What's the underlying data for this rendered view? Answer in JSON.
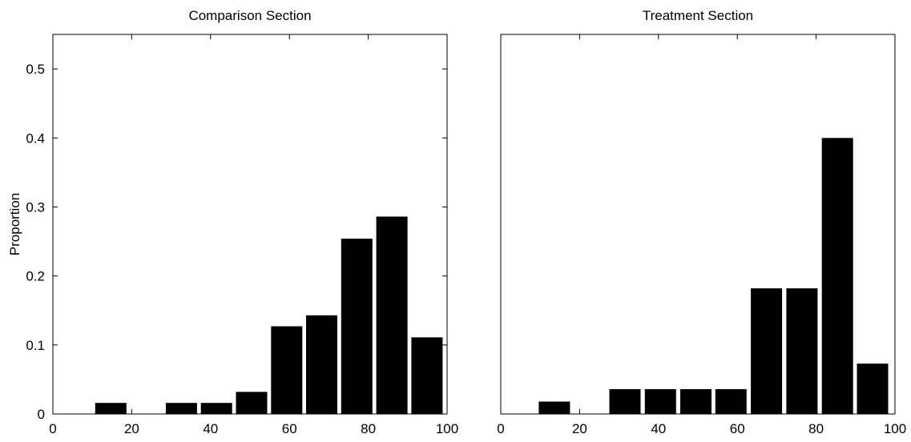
{
  "chart_data": [
    {
      "type": "bar",
      "title": "Comparison Section",
      "xlabel": "",
      "ylabel": "Proportion",
      "xlim": [
        0,
        100
      ],
      "ylim": [
        0,
        0.55
      ],
      "xticks": [
        0,
        20,
        40,
        60,
        80,
        100
      ],
      "yticks": [
        0,
        0.1,
        0.2,
        0.3,
        0.4,
        0.5
      ],
      "ytick_labels": [
        "0",
        "0.1",
        "0.2",
        "0.3",
        "0.4",
        "0.5"
      ],
      "y_axis_side": "left",
      "x": [
        14.7,
        23.7,
        32.6,
        41.5,
        50.4,
        59.3,
        68.2,
        77.1,
        86.0,
        94.9
      ],
      "values": [
        0.016,
        0.0,
        0.016,
        0.016,
        0.032,
        0.127,
        0.143,
        0.254,
        0.286,
        0.111
      ],
      "color": "#000000",
      "grid": false
    },
    {
      "type": "bar",
      "title": "Treatment Section",
      "xlabel": "",
      "ylabel": "",
      "xlim": [
        0,
        100
      ],
      "ylim": [
        0,
        0.55
      ],
      "xticks": [
        0,
        20,
        40,
        60,
        80,
        100
      ],
      "yticks": [
        0,
        0.1,
        0.2,
        0.3,
        0.4,
        0.5
      ],
      "ytick_labels": [
        "0",
        "0.1",
        "0.2",
        "0.3",
        "0.4",
        "0.5"
      ],
      "y_axis_side": "none",
      "x": [
        13.6,
        22.5,
        31.5,
        40.5,
        49.5,
        58.4,
        67.4,
        76.4,
        85.4,
        94.3
      ],
      "values": [
        0.018,
        0.0,
        0.036,
        0.036,
        0.036,
        0.036,
        0.182,
        0.182,
        0.4,
        0.073
      ],
      "color": "#000000",
      "grid": false
    }
  ]
}
